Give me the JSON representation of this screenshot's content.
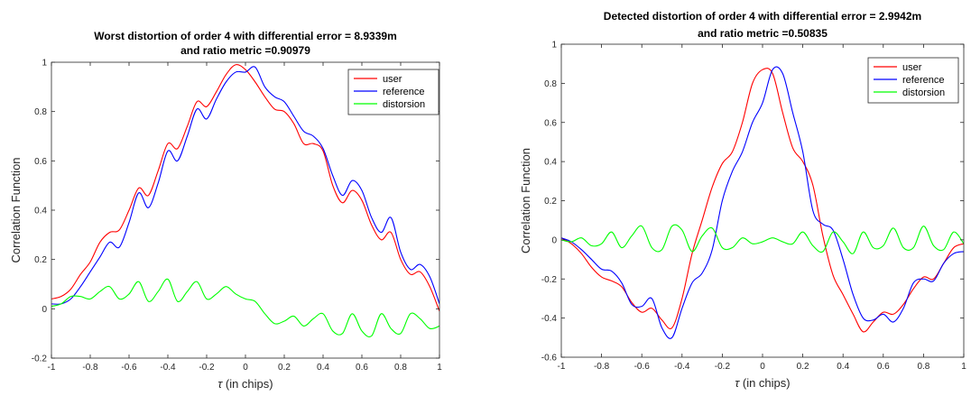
{
  "chart_data": [
    {
      "type": "line",
      "title_lines": [
        "Worst distortion of order 4 with differential error = 8.9339m",
        "and ratio metric =0.90979"
      ],
      "xlabel_symbol": "τ",
      "xlabel_text": " (in chips)",
      "ylabel": "Correlation Function",
      "xlim": [
        -1,
        1
      ],
      "ylim": [
        -0.2,
        1
      ],
      "xticks": [
        -1,
        -0.8,
        -0.6,
        -0.4,
        -0.2,
        0,
        0.2,
        0.4,
        0.6,
        0.8,
        1
      ],
      "xtick_labels": [
        "-1",
        "-0.8",
        "-0.6",
        "-0.4",
        "-0.2",
        "0",
        "0.2",
        "0.4",
        "0.6",
        "0.8",
        "1"
      ],
      "yticks": [
        -0.2,
        0,
        0.2,
        0.4,
        0.6,
        0.8,
        1
      ],
      "ytick_labels": [
        "-0.2",
        "0",
        "0.2",
        "0.4",
        "0.6",
        "0.8",
        "1"
      ],
      "legend_position": "top-right",
      "series": [
        {
          "name": "user",
          "color": "#ff0000",
          "x": [
            -1,
            -0.95,
            -0.9,
            -0.85,
            -0.8,
            -0.75,
            -0.7,
            -0.65,
            -0.6,
            -0.55,
            -0.5,
            -0.45,
            -0.4,
            -0.35,
            -0.3,
            -0.25,
            -0.2,
            -0.15,
            -0.1,
            -0.05,
            0,
            0.05,
            0.1,
            0.15,
            0.2,
            0.25,
            0.3,
            0.35,
            0.4,
            0.45,
            0.5,
            0.55,
            0.6,
            0.65,
            0.7,
            0.75,
            0.8,
            0.85,
            0.9,
            0.95,
            1
          ],
          "y": [
            0.04,
            0.05,
            0.08,
            0.14,
            0.19,
            0.27,
            0.31,
            0.32,
            0.4,
            0.49,
            0.46,
            0.56,
            0.67,
            0.65,
            0.74,
            0.84,
            0.82,
            0.88,
            0.95,
            0.99,
            0.97,
            0.92,
            0.86,
            0.81,
            0.8,
            0.75,
            0.67,
            0.67,
            0.64,
            0.5,
            0.43,
            0.48,
            0.44,
            0.34,
            0.28,
            0.31,
            0.2,
            0.14,
            0.15,
            0.09,
            -0.01
          ]
        },
        {
          "name": "reference",
          "color": "#0000ff",
          "x": [
            -1,
            -0.95,
            -0.9,
            -0.85,
            -0.8,
            -0.75,
            -0.7,
            -0.65,
            -0.6,
            -0.55,
            -0.5,
            -0.45,
            -0.4,
            -0.35,
            -0.3,
            -0.25,
            -0.2,
            -0.15,
            -0.1,
            -0.05,
            0,
            0.05,
            0.1,
            0.15,
            0.2,
            0.25,
            0.3,
            0.35,
            0.4,
            0.45,
            0.5,
            0.55,
            0.6,
            0.65,
            0.7,
            0.75,
            0.8,
            0.85,
            0.9,
            0.95,
            1
          ],
          "y": [
            0.02,
            0.02,
            0.04,
            0.09,
            0.15,
            0.21,
            0.27,
            0.25,
            0.35,
            0.47,
            0.41,
            0.51,
            0.64,
            0.6,
            0.7,
            0.81,
            0.77,
            0.85,
            0.92,
            0.96,
            0.96,
            0.98,
            0.9,
            0.86,
            0.84,
            0.78,
            0.72,
            0.7,
            0.65,
            0.54,
            0.46,
            0.52,
            0.48,
            0.37,
            0.31,
            0.37,
            0.23,
            0.16,
            0.18,
            0.13,
            0.02
          ]
        },
        {
          "name": "distorsion",
          "color": "#00ff00",
          "x": [
            -1,
            -0.95,
            -0.9,
            -0.85,
            -0.8,
            -0.75,
            -0.7,
            -0.65,
            -0.6,
            -0.55,
            -0.5,
            -0.45,
            -0.4,
            -0.35,
            -0.3,
            -0.25,
            -0.2,
            -0.15,
            -0.1,
            -0.05,
            0,
            0.05,
            0.1,
            0.15,
            0.2,
            0.25,
            0.3,
            0.35,
            0.4,
            0.45,
            0.5,
            0.55,
            0.6,
            0.65,
            0.7,
            0.75,
            0.8,
            0.85,
            0.9,
            0.95,
            1
          ],
          "y": [
            0.01,
            0.02,
            0.05,
            0.05,
            0.04,
            0.07,
            0.09,
            0.04,
            0.06,
            0.11,
            0.03,
            0.07,
            0.12,
            0.03,
            0.07,
            0.11,
            0.04,
            0.06,
            0.09,
            0.06,
            0.04,
            0.03,
            -0.02,
            -0.06,
            -0.05,
            -0.03,
            -0.07,
            -0.04,
            -0.02,
            -0.09,
            -0.1,
            -0.02,
            -0.09,
            -0.11,
            -0.02,
            -0.08,
            -0.1,
            -0.02,
            -0.04,
            -0.08,
            -0.07
          ]
        }
      ]
    },
    {
      "type": "line",
      "title_lines": [
        "Detected distortion of order 4 with differential error = 2.9942m",
        "and ratio metric =0.50835"
      ],
      "xlabel_symbol": "τ",
      "xlabel_text": " (in chips)",
      "ylabel": "Correlation Function",
      "xlim": [
        -1,
        1
      ],
      "ylim": [
        -0.6,
        1
      ],
      "xticks": [
        -1,
        -0.8,
        -0.6,
        -0.4,
        -0.2,
        0,
        0.2,
        0.4,
        0.6,
        0.8,
        1
      ],
      "xtick_labels": [
        "-1",
        "-0.8",
        "-0.6",
        "-0.4",
        "-0.2",
        "0",
        "0.2",
        "0.4",
        "0.6",
        "0.8",
        "1"
      ],
      "yticks": [
        -0.6,
        -0.4,
        -0.2,
        0,
        0.2,
        0.4,
        0.6,
        0.8,
        1
      ],
      "ytick_labels": [
        "-0.6",
        "-0.4",
        "-0.2",
        "0",
        "0.2",
        "0.4",
        "0.6",
        "0.8",
        "1"
      ],
      "legend_position": "top-right",
      "series": [
        {
          "name": "user",
          "color": "#ff0000",
          "x": [
            -1,
            -0.95,
            -0.9,
            -0.85,
            -0.8,
            -0.75,
            -0.7,
            -0.65,
            -0.6,
            -0.55,
            -0.5,
            -0.45,
            -0.4,
            -0.35,
            -0.3,
            -0.25,
            -0.2,
            -0.15,
            -0.1,
            -0.05,
            0,
            0.05,
            0.1,
            0.15,
            0.2,
            0.25,
            0.3,
            0.35,
            0.4,
            0.45,
            0.5,
            0.55,
            0.6,
            0.65,
            0.7,
            0.75,
            0.8,
            0.85,
            0.9,
            0.95,
            1
          ],
          "y": [
            0.01,
            -0.02,
            -0.07,
            -0.14,
            -0.19,
            -0.21,
            -0.24,
            -0.32,
            -0.37,
            -0.35,
            -0.41,
            -0.45,
            -0.3,
            -0.07,
            0.1,
            0.27,
            0.39,
            0.45,
            0.6,
            0.8,
            0.87,
            0.85,
            0.65,
            0.47,
            0.4,
            0.28,
            0.02,
            -0.18,
            -0.28,
            -0.38,
            -0.47,
            -0.42,
            -0.37,
            -0.38,
            -0.33,
            -0.25,
            -0.19,
            -0.2,
            -0.12,
            -0.04,
            -0.02
          ]
        },
        {
          "name": "reference",
          "color": "#0000ff",
          "x": [
            -1,
            -0.95,
            -0.9,
            -0.85,
            -0.8,
            -0.75,
            -0.7,
            -0.65,
            -0.6,
            -0.55,
            -0.5,
            -0.45,
            -0.4,
            -0.35,
            -0.3,
            -0.25,
            -0.2,
            -0.15,
            -0.1,
            -0.05,
            0,
            0.05,
            0.1,
            0.15,
            0.2,
            0.25,
            0.3,
            0.35,
            0.4,
            0.45,
            0.5,
            0.55,
            0.6,
            0.65,
            0.7,
            0.75,
            0.8,
            0.85,
            0.9,
            0.95,
            1
          ],
          "y": [
            0.01,
            -0.01,
            -0.05,
            -0.1,
            -0.15,
            -0.16,
            -0.22,
            -0.33,
            -0.34,
            -0.3,
            -0.45,
            -0.5,
            -0.35,
            -0.22,
            -0.17,
            -0.05,
            0.2,
            0.35,
            0.45,
            0.6,
            0.7,
            0.87,
            0.85,
            0.65,
            0.45,
            0.15,
            0.08,
            0.05,
            -0.1,
            -0.28,
            -0.4,
            -0.41,
            -0.38,
            -0.42,
            -0.35,
            -0.22,
            -0.2,
            -0.21,
            -0.12,
            -0.07,
            -0.06
          ]
        },
        {
          "name": "distorsion",
          "color": "#00ff00",
          "x": [
            -1,
            -0.95,
            -0.9,
            -0.85,
            -0.8,
            -0.75,
            -0.7,
            -0.65,
            -0.6,
            -0.55,
            -0.5,
            -0.45,
            -0.4,
            -0.35,
            -0.3,
            -0.25,
            -0.2,
            -0.15,
            -0.1,
            -0.05,
            0,
            0.05,
            0.1,
            0.15,
            0.2,
            0.25,
            0.3,
            0.35,
            0.4,
            0.45,
            0.5,
            0.55,
            0.6,
            0.65,
            0.7,
            0.75,
            0.8,
            0.85,
            0.9,
            0.95,
            1
          ],
          "y": [
            0,
            -0.01,
            0.01,
            -0.03,
            -0.02,
            0.04,
            -0.04,
            0.02,
            0.07,
            -0.04,
            -0.05,
            0.07,
            0.05,
            -0.06,
            0.02,
            0.06,
            -0.04,
            -0.04,
            0.01,
            -0.02,
            -0.01,
            0.01,
            -0.01,
            -0.02,
            0.04,
            -0.03,
            -0.06,
            0.04,
            -0.01,
            -0.07,
            0.04,
            -0.04,
            -0.03,
            0.06,
            -0.04,
            -0.04,
            0.07,
            -0.03,
            -0.05,
            0.04,
            -0.02
          ]
        }
      ]
    }
  ]
}
